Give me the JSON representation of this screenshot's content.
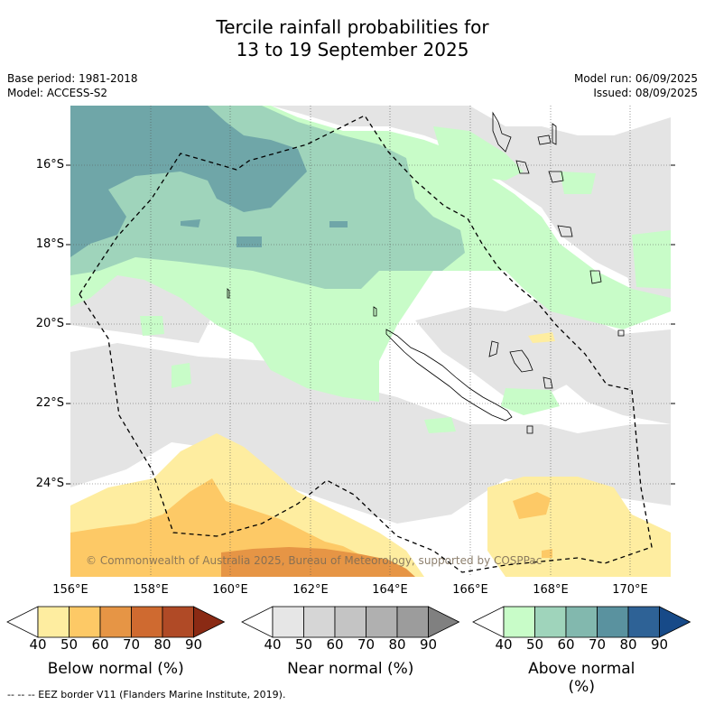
{
  "title_line1": "Tercile rainfall probabilities for",
  "title_line2": "13 to 19 September 2025",
  "base_period": "Base period: 1981-2018",
  "model": "Model: ACCESS-S2",
  "model_run": "Model run: 06/09/2025",
  "issued": "Issued: 08/09/2025",
  "lat_labels": [
    "16°S",
    "18°S",
    "20°S",
    "22°S",
    "24°S"
  ],
  "lon_labels": [
    "156°E",
    "158°E",
    "160°E",
    "162°E",
    "164°E",
    "166°E",
    "168°E",
    "170°E"
  ],
  "copyright": "© Commonwealth of Australia 2025, Bureau of Meteorology, supported by COSPPac",
  "colorbars": [
    {
      "title": "Below normal (%)",
      "ticks": [
        "40",
        "50",
        "60",
        "70",
        "80",
        "90"
      ],
      "colors": [
        "#ffffff",
        "#feeda0",
        "#fdc966",
        "#e69545",
        "#cf6a30",
        "#b04a26",
        "#8a2a14"
      ]
    },
    {
      "title": "Near normal (%)",
      "ticks": [
        "40",
        "50",
        "60",
        "70",
        "80",
        "90"
      ],
      "colors": [
        "#ffffff",
        "#e6e6e6",
        "#d6d6d6",
        "#c4c4c4",
        "#b0b0b0",
        "#9c9c9c",
        "#808080"
      ]
    },
    {
      "title": "Above normal (%)",
      "ticks": [
        "40",
        "50",
        "60",
        "70",
        "80",
        "90"
      ],
      "colors": [
        "#ffffff",
        "#c8fcc8",
        "#9fd4bb",
        "#82b8ae",
        "#5a929f",
        "#2e6296",
        "#174a88"
      ]
    }
  ],
  "footnote": "--  --  -- EEZ border V11 (Flanders Marine Institute, 2019)."
}
